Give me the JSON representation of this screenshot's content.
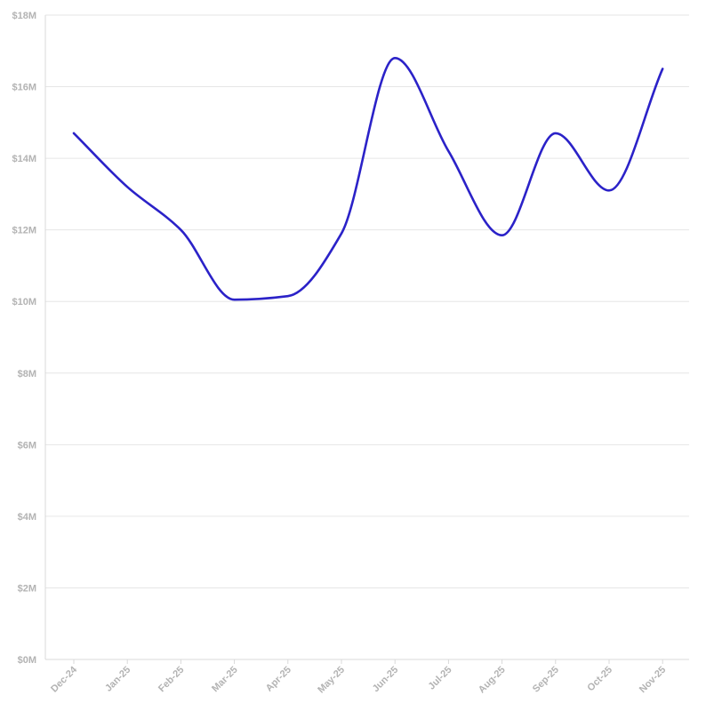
{
  "chart_data": {
    "type": "line",
    "title": "",
    "xlabel": "",
    "ylabel": "",
    "categories": [
      "Dec-24",
      "Jan-25",
      "Feb-25",
      "Mar-25",
      "Apr-25",
      "May-25",
      "Jun-25",
      "Jul-25",
      "Aug-25",
      "Sep-25",
      "Oct-25",
      "Nov-25"
    ],
    "y_ticks": [
      "$0M",
      "$2M",
      "$4M",
      "$6M",
      "$8M",
      "$10M",
      "$12M",
      "$14M",
      "$16M",
      "$18M"
    ],
    "ylim": [
      0,
      18
    ],
    "grid": true,
    "legend": "none",
    "series": [
      {
        "color": "#2b22c8",
        "values": [
          14.7,
          13.2,
          12.0,
          10.05,
          10.15,
          11.9,
          16.8,
          14.2,
          11.85,
          14.7,
          13.1,
          16.5
        ]
      }
    ]
  }
}
